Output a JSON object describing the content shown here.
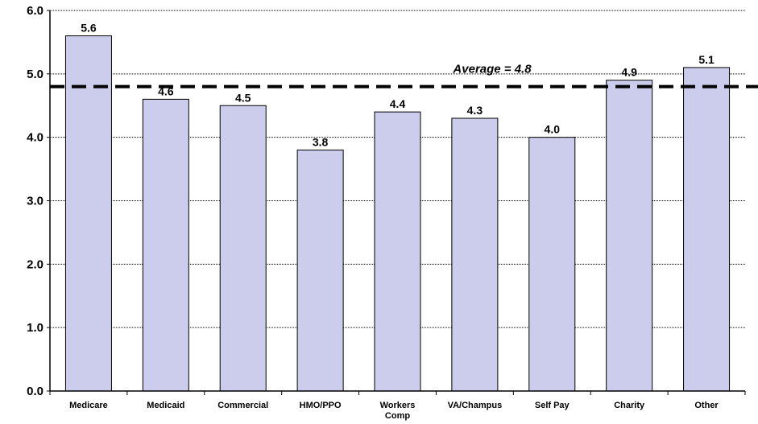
{
  "chart_data": {
    "type": "bar",
    "categories": [
      "Medicare",
      "Medicaid",
      "Commercial",
      "HMO/PPO",
      "Workers Comp",
      "VA/Champus",
      "Self Pay",
      "Charity",
      "Other"
    ],
    "category_lines": [
      [
        "Medicare"
      ],
      [
        "Medicaid"
      ],
      [
        "Commercial"
      ],
      [
        "HMO/PPO"
      ],
      [
        "Workers",
        "Comp"
      ],
      [
        "VA/Champus"
      ],
      [
        "Self Pay"
      ],
      [
        "Charity"
      ],
      [
        "Other"
      ]
    ],
    "values": [
      5.6,
      4.6,
      4.5,
      3.8,
      4.4,
      4.3,
      4.0,
      4.9,
      5.1
    ],
    "value_labels": [
      "5.6",
      "4.6",
      "4.5",
      "3.8",
      "4.4",
      "4.3",
      "4.0",
      "4.9",
      "5.1"
    ],
    "yticks": [
      "0.0",
      "1.0",
      "2.0",
      "3.0",
      "4.0",
      "5.0",
      "6.0"
    ],
    "ylim": [
      0,
      6
    ],
    "grid": true,
    "average": 4.8,
    "average_label": "Average = 4.8",
    "title": "",
    "xlabel": "",
    "ylabel": "",
    "colors": {
      "bar_fill": "#ccccec",
      "bar_stroke": "#000000",
      "grid": "#000000",
      "average_line": "#000000"
    }
  }
}
